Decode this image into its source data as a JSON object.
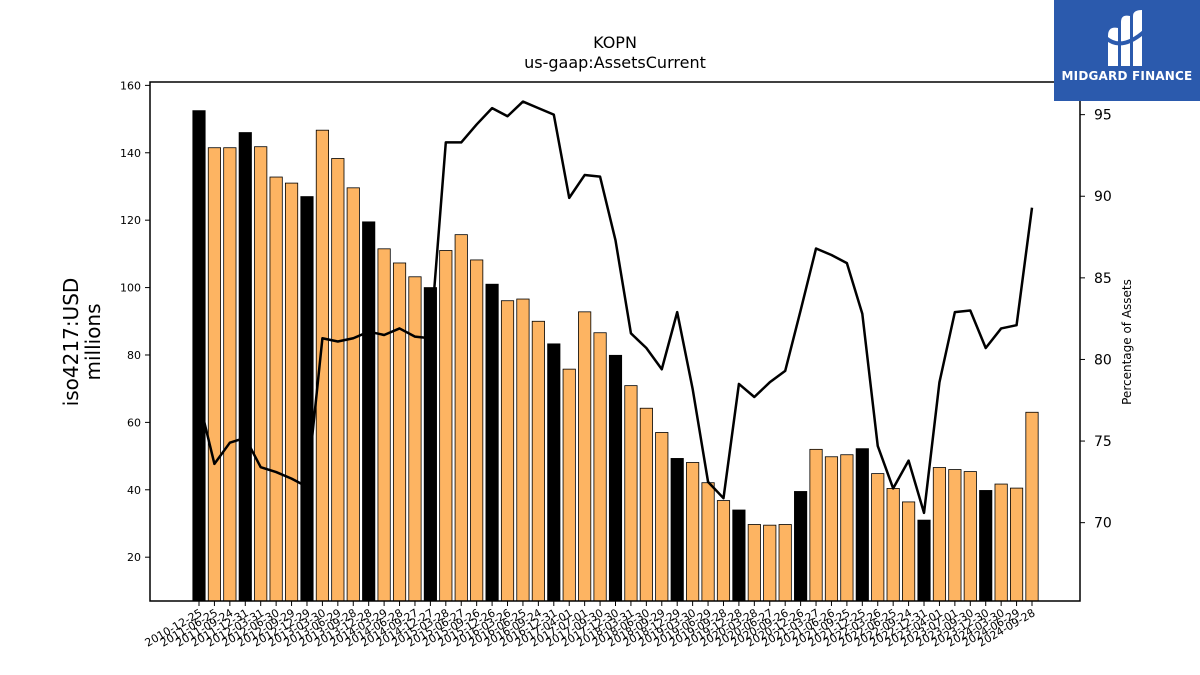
{
  "chart_data": {
    "type": "bar",
    "title": "KOPN",
    "subtitle": "us-gaap:AssetsCurrent",
    "ylabel_line1": "iso4217:USD",
    "ylabel_line2": "millions",
    "y2label": "Percentage of Assets",
    "ylim": [
      7,
      161
    ],
    "y2lim": [
      65.2,
      97.0
    ],
    "yticks": [
      20,
      40,
      60,
      80,
      100,
      120,
      140,
      160
    ],
    "y2ticks": [
      70,
      75,
      80,
      85,
      90,
      95
    ],
    "colors": {
      "annual": "#000000",
      "quarter": "#fdb462",
      "line": "#000000"
    },
    "categories": [
      "2010-12-25",
      "2011-06-25",
      "2011-09-24",
      "2011-12-31",
      "2012-03-31",
      "2012-06-30",
      "2012-09-29",
      "2012-12-29",
      "2013-03-30",
      "2013-06-29",
      "2013-09-28",
      "2013-12-28",
      "2014-03-29",
      "2014-06-28",
      "2014-09-27",
      "2014-12-27",
      "2015-03-28",
      "2015-06-27",
      "2015-09-26",
      "2015-12-26",
      "2016-03-26",
      "2016-06-25",
      "2016-09-24",
      "2016-12-31",
      "2017-04-01",
      "2017-07-01",
      "2017-09-30",
      "2017-12-30",
      "2018-03-31",
      "2018-06-30",
      "2018-09-29",
      "2018-12-29",
      "2019-03-30",
      "2019-06-29",
      "2019-09-28",
      "2019-12-28",
      "2020-03-28",
      "2020-06-27",
      "2020-09-26",
      "2020-12-26",
      "2021-03-27",
      "2021-06-26",
      "2021-09-25",
      "2021-12-25",
      "2022-03-26",
      "2022-06-25",
      "2022-09-24",
      "2022-12-31",
      "2023-04-01",
      "2023-07-01",
      "2023-09-30",
      "2023-12-30",
      "2024-03-30",
      "2024-06-29",
      "2024-09-28"
    ],
    "values": [
      152.5,
      141.5,
      141.5,
      146.0,
      141.8,
      132.8,
      131.0,
      127.0,
      146.7,
      138.3,
      129.6,
      119.5,
      111.5,
      107.3,
      103.2,
      100.0,
      111.0,
      115.7,
      108.2,
      101.0,
      96.1,
      96.6,
      90.0,
      83.3,
      75.8,
      92.8,
      86.6,
      79.9,
      70.9,
      64.2,
      57.0,
      49.3,
      48.1,
      42.1,
      36.8,
      34.0,
      29.7,
      29.5,
      29.7,
      39.5,
      52.0,
      49.8,
      50.4,
      52.2,
      44.8,
      40.4,
      36.4,
      31.0,
      46.6,
      46.0,
      45.4,
      39.8,
      41.7,
      40.5,
      63.0
    ],
    "annual": [
      true,
      false,
      false,
      true,
      false,
      false,
      false,
      true,
      false,
      false,
      false,
      true,
      false,
      false,
      false,
      true,
      false,
      false,
      false,
      true,
      false,
      false,
      false,
      true,
      false,
      false,
      false,
      true,
      false,
      false,
      false,
      true,
      false,
      false,
      false,
      true,
      false,
      false,
      false,
      true,
      false,
      false,
      false,
      true,
      false,
      false,
      false,
      true,
      false,
      false,
      false,
      true,
      false,
      false,
      false
    ],
    "percent": [
      77.5,
      73.6,
      74.9,
      75.2,
      73.4,
      73.1,
      72.7,
      72.2,
      81.3,
      81.1,
      81.3,
      81.7,
      81.5,
      81.9,
      81.4,
      81.3,
      93.3,
      93.3,
      94.4,
      95.4,
      94.9,
      95.8,
      95.4,
      95.0,
      89.9,
      91.3,
      91.2,
      87.3,
      81.6,
      80.7,
      79.4,
      82.9,
      78.2,
      72.5,
      71.5,
      78.5,
      77.7,
      78.6,
      79.3,
      83.0,
      86.8,
      86.4,
      85.9,
      82.8,
      74.7,
      72.1,
      73.8,
      70.6,
      78.6,
      82.9,
      83.0,
      80.7,
      81.9,
      82.1,
      89.3
    ]
  },
  "logo": {
    "text": "MIDGARD FINANCE"
  }
}
